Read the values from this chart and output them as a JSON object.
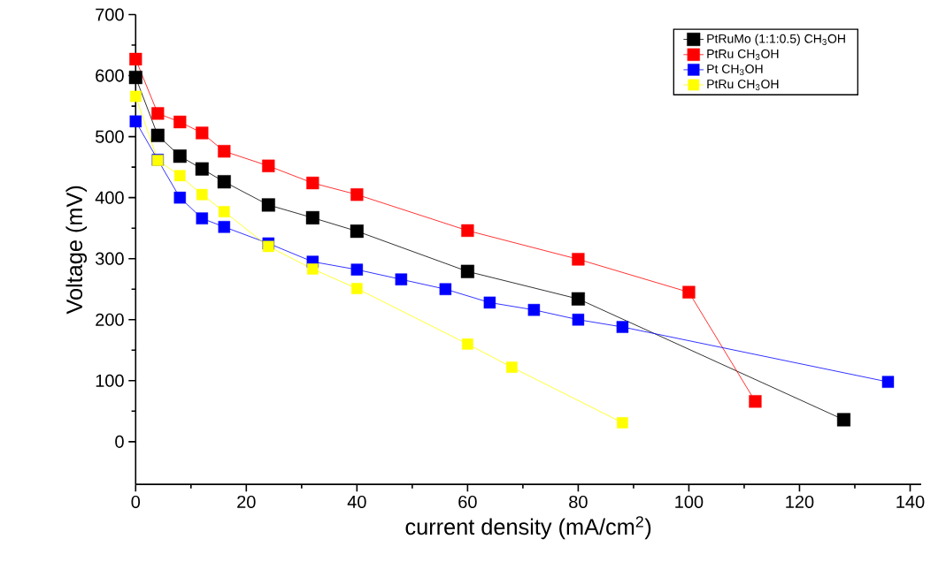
{
  "chart_data": {
    "type": "line",
    "xlabel": "current density (mA/cm$^{2}$)",
    "ylabel": "Voltage (mV)",
    "xlim": [
      0,
      142
    ],
    "ylim": [
      -70,
      700
    ],
    "xticks": [
      0,
      20,
      40,
      60,
      80,
      100,
      120,
      140
    ],
    "yticks": [
      0,
      100,
      200,
      300,
      400,
      500,
      600,
      700
    ],
    "grid": false,
    "legend": "top right",
    "marker": "square",
    "line_style": "solid",
    "series": [
      {
        "name": "PtRuMo (1:1:0.5) CH$_{3}$OH",
        "color": "#000000",
        "x": [
          0,
          4,
          8,
          12,
          16,
          24,
          32,
          40,
          60,
          80,
          128
        ],
        "values": [
          597,
          502,
          468,
          447,
          426,
          388,
          367,
          345,
          279,
          234,
          36
        ]
      },
      {
        "name": "PtRu CH$_{3}$OH",
        "color": "#ff0000",
        "x": [
          0,
          4,
          8,
          12,
          16,
          24,
          32,
          40,
          60,
          80,
          100,
          112
        ],
        "values": [
          627,
          538,
          524,
          506,
          476,
          452,
          424,
          405,
          346,
          299,
          245,
          66
        ]
      },
      {
        "name": "Pt CH$_{3}$OH",
        "color": "#0000ff",
        "x": [
          0,
          4,
          8,
          12,
          16,
          24,
          32,
          40,
          48,
          56,
          64,
          72,
          80,
          88,
          136
        ],
        "values": [
          525,
          462,
          400,
          366,
          352,
          325,
          295,
          282,
          266,
          250,
          228,
          216,
          200,
          188,
          98
        ]
      },
      {
        "name": "PtRu CH$_{3}$OH",
        "color": "#ffff00",
        "x": [
          0,
          4,
          8,
          12,
          16,
          24,
          32,
          40,
          60,
          68,
          88
        ],
        "values": [
          566,
          461,
          436,
          405,
          377,
          320,
          283,
          251,
          160,
          122,
          31
        ]
      }
    ]
  }
}
